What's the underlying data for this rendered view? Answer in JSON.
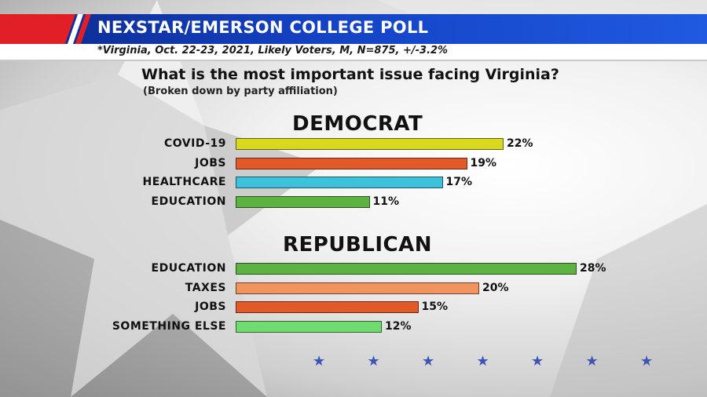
{
  "header": {
    "title": "NEXSTAR/EMERSON COLLEGE POLL",
    "subtitle": "*Virginia, Oct. 22-23, 2021, Likely Voters, M, N=875, +/-3.2%"
  },
  "chart_data": [
    {
      "type": "bar",
      "orientation": "horizontal",
      "title": "What is the most important issue facing Virginia?",
      "subtitle": "(Broken down by party affiliation)",
      "group_title": "DEMOCRAT",
      "categories": [
        "COVID-19",
        "JOBS",
        "HEALTHCARE",
        "EDUCATION"
      ],
      "values": [
        22,
        19,
        17,
        11
      ],
      "value_labels": [
        "22%",
        "19%",
        "17%",
        "11%"
      ],
      "colors": [
        "#d9d81e",
        "#e35a28",
        "#3ec2dc",
        "#5cb342"
      ],
      "xlim": [
        0,
        30
      ]
    },
    {
      "type": "bar",
      "orientation": "horizontal",
      "group_title": "REPUBLICAN",
      "categories": [
        "EDUCATION",
        "TAXES",
        "JOBS",
        "SOMETHING ELSE"
      ],
      "values": [
        28,
        20,
        15,
        12
      ],
      "value_labels": [
        "28%",
        "20%",
        "15%",
        "12%"
      ],
      "colors": [
        "#5cb342",
        "#f0955e",
        "#e35a28",
        "#6fdc70"
      ],
      "xlim": [
        0,
        30
      ]
    }
  ],
  "decor": {
    "star_glyph": "★",
    "star_count": 7,
    "brand_colors": [
      "#e21f26",
      "#ffffff",
      "#1442c4"
    ]
  }
}
